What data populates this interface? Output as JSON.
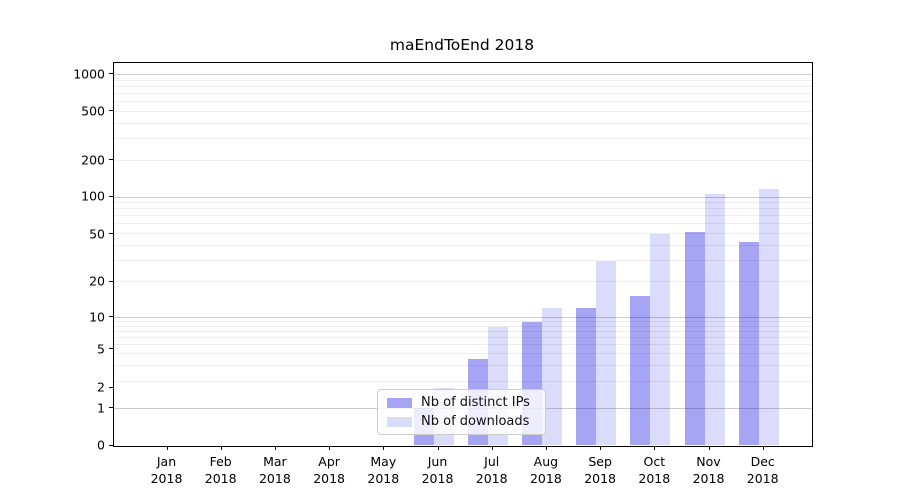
{
  "title": "maEndToEnd 2018",
  "legend": {
    "items": [
      {
        "label": "Nb of distinct IPs",
        "color": "#a5a5f4"
      },
      {
        "label": "Nb of downloads",
        "color": "#dbdbfb"
      }
    ]
  },
  "colors": {
    "distinct_ips_bar": "#a5a5f4",
    "downloads_bar": "#dbdbfb",
    "major_grid": "#cccccc",
    "minor_grid": "#ededed",
    "axis": "#000000"
  },
  "chart_data": {
    "type": "bar",
    "title": "maEndToEnd 2018",
    "categories": [
      "Jan 2018",
      "Feb 2018",
      "Mar 2018",
      "Apr 2018",
      "May 2018",
      "Jun 2018",
      "Jul 2018",
      "Aug 2018",
      "Sep 2018",
      "Oct 2018",
      "Nov 2018",
      "Dec 2018"
    ],
    "series": [
      {
        "name": "Nb of distinct IPs",
        "values": [
          0,
          0,
          0,
          0,
          0,
          1,
          4,
          9,
          12,
          15,
          52,
          43
        ]
      },
      {
        "name": "Nb of downloads",
        "values": [
          0,
          0,
          0,
          0,
          0,
          2,
          8,
          12,
          30,
          50,
          105,
          115
        ]
      }
    ],
    "xlabel": "",
    "ylabel": "",
    "yscale": "symlog-like",
    "ytick_values": [
      0,
      1,
      2,
      5,
      10,
      20,
      50,
      100,
      200,
      500,
      1000
    ],
    "ytick_labels": [
      "0",
      "1",
      "2",
      "5",
      "10",
      "20",
      "50",
      "100",
      "200",
      "500",
      "1000"
    ],
    "ylim": [
      0,
      1250
    ],
    "grid": "horizontal major and log-minor lines",
    "legend_position": "inside lower-center (over Jun–Jul)"
  }
}
